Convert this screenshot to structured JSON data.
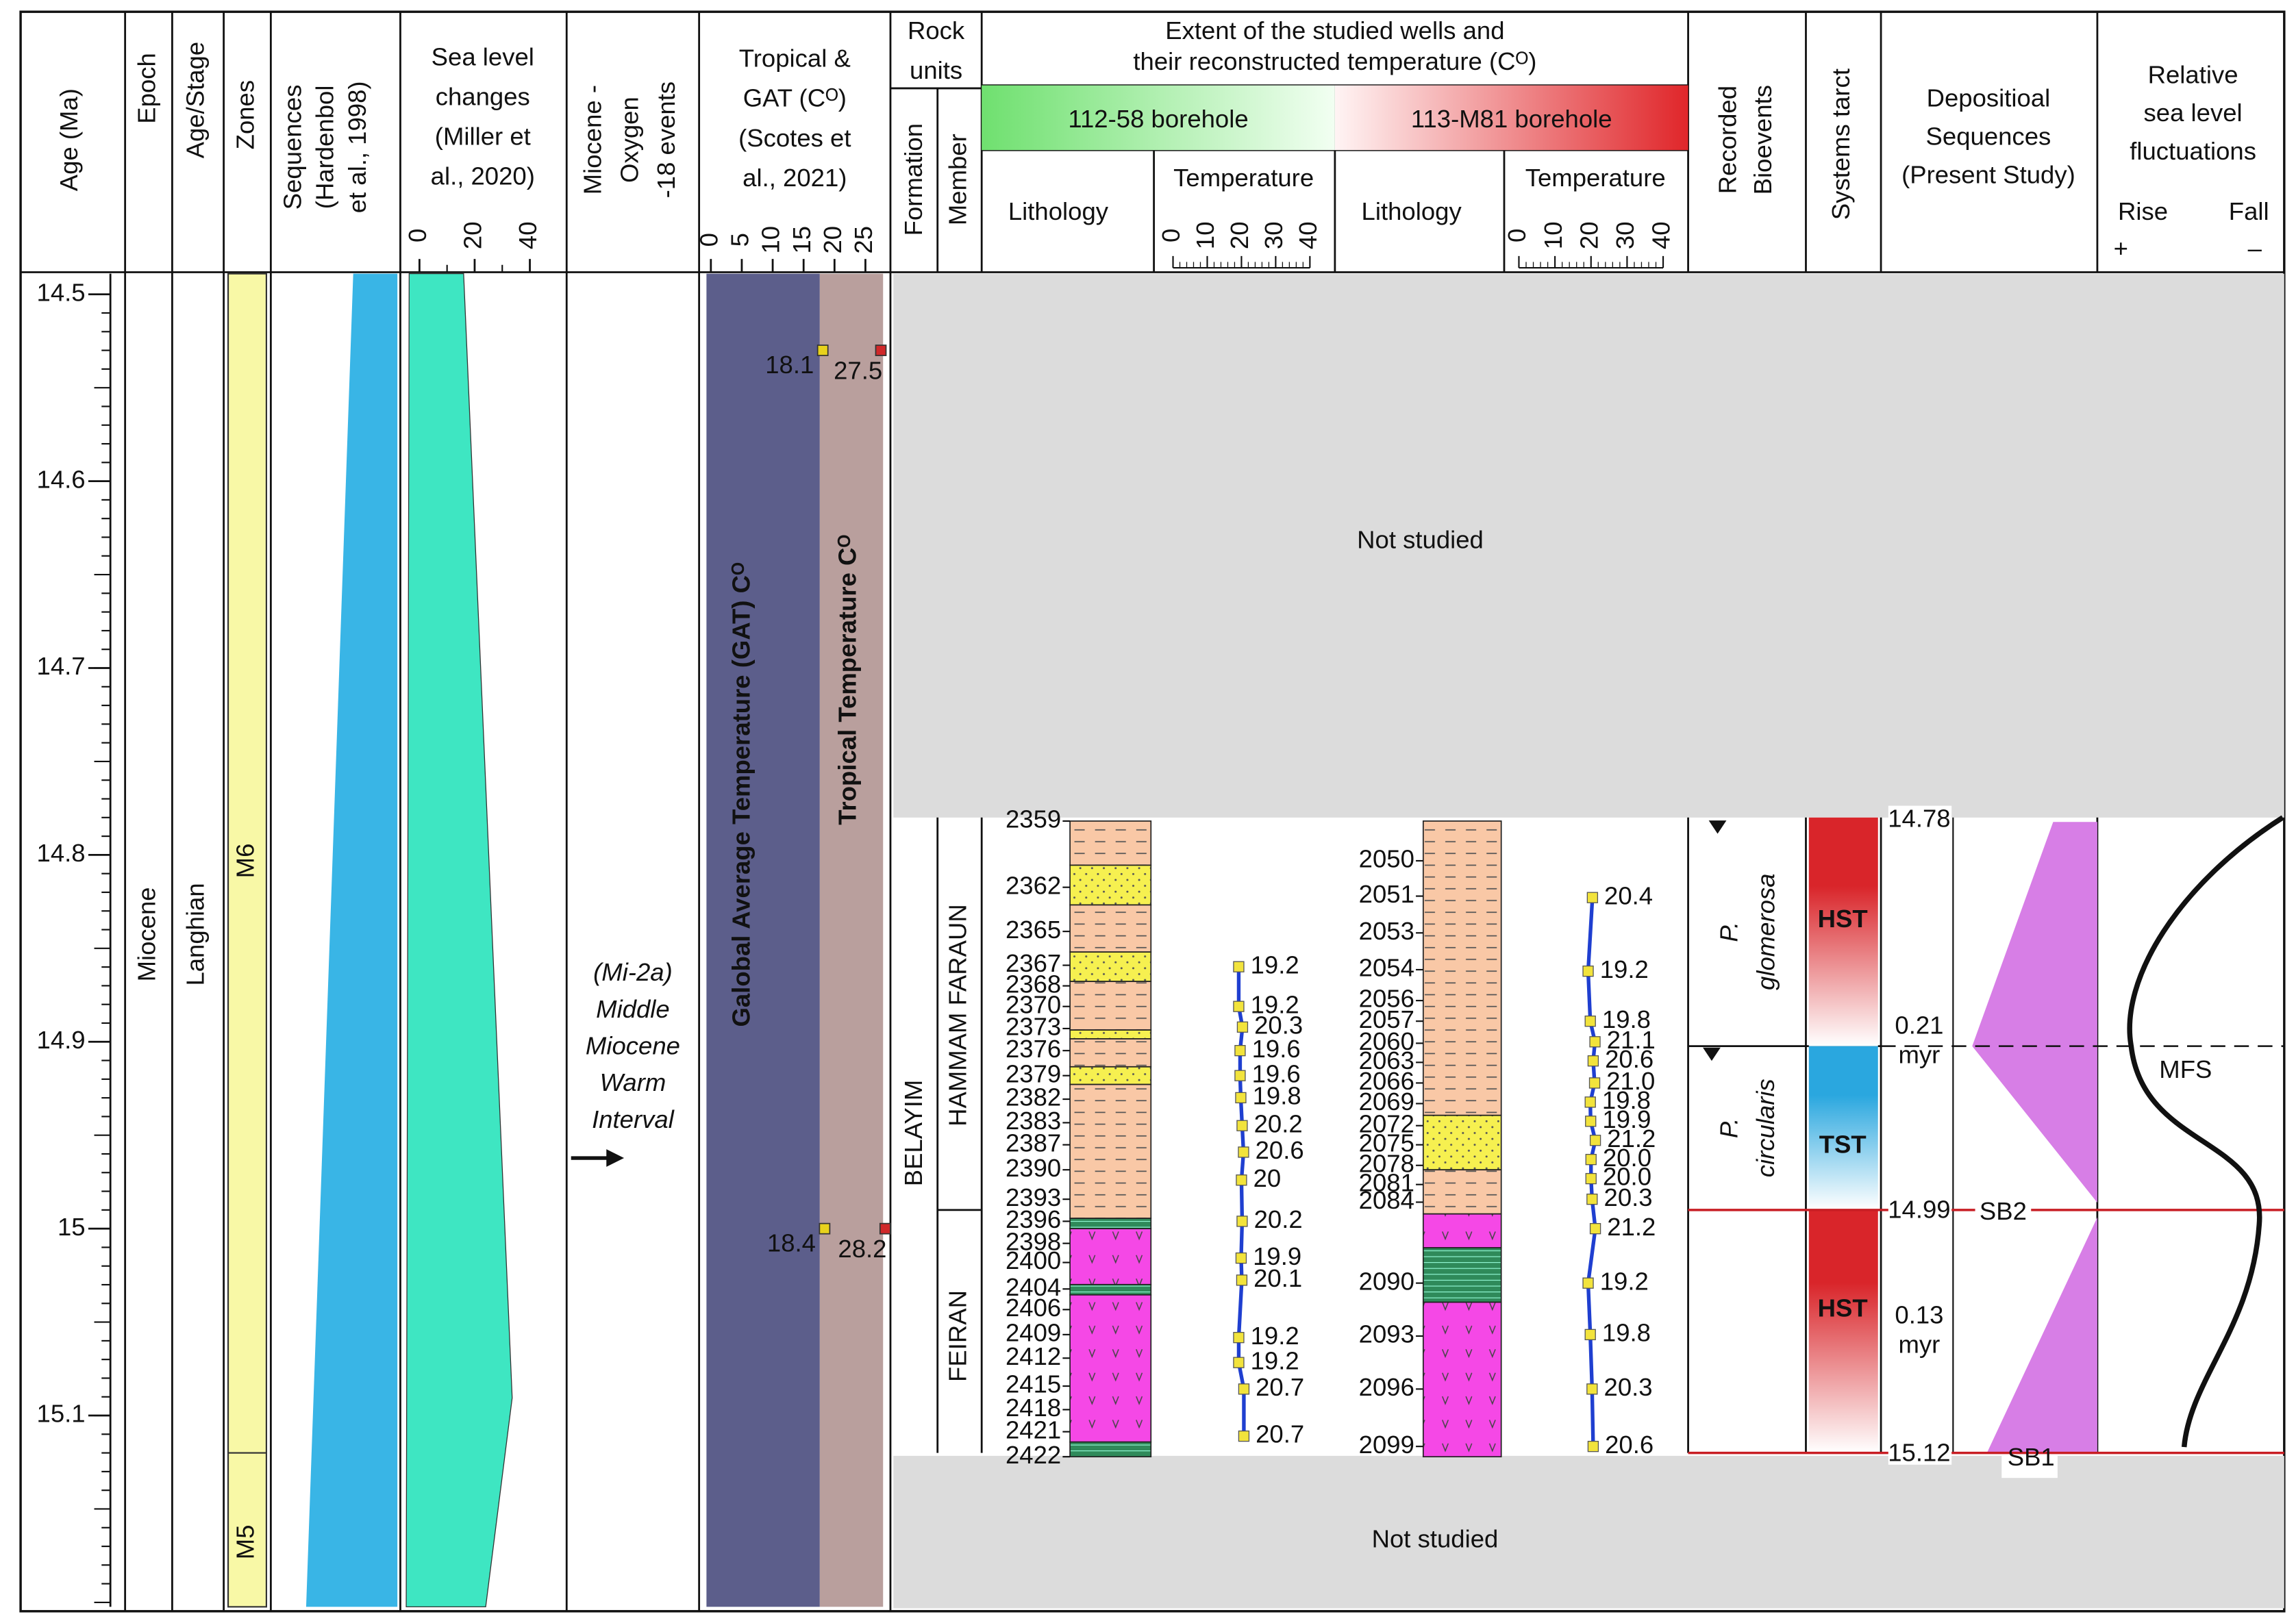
{
  "header": {
    "age": "Age (Ma)",
    "epoch": "Epoch",
    "stage": "Age/Stage",
    "zones": "Zones",
    "sequences": [
      "Sequences",
      "(Hardenbol",
      "et al., 1998)"
    ],
    "sea_level": [
      "Sea level",
      "changes",
      "(Miller et",
      "al., 2020)"
    ],
    "oxygen": [
      "Miocene -",
      "Oxygen",
      "-18 events"
    ],
    "temperature": [
      "Tropical &",
      "GAT (Cᴼ)",
      "(Scotes et",
      "al., 2021)"
    ],
    "rock_units": [
      "Rock",
      "units"
    ],
    "formation": "Formation",
    "member": "Member",
    "wells": [
      "Extent of the studied wells and",
      "their reconstructed temperature (Cᴼ)"
    ],
    "bioevents": [
      "Recorded",
      "Bioevents"
    ],
    "systems_tract": "Systems tarct",
    "depositional": [
      "Depositioal",
      "Sequences",
      "(Present Study)"
    ],
    "relative": [
      "Relative",
      "sea level",
      "fluctuations"
    ],
    "rise": "Rise",
    "fall": "Fall",
    "plus": "+",
    "minus": "–"
  },
  "age_axis": {
    "ylim": [
      14.49,
      15.2
    ],
    "yticks": [
      14.5,
      14.6,
      14.7,
      14.8,
      14.9,
      15,
      15.1
    ],
    "minor_step": 0.01
  },
  "epoch": "Miocene",
  "stage": "Langhian",
  "zones": {
    "names": [
      "M6",
      "M5"
    ],
    "boundary": 15.12
  },
  "sea_level": {
    "xlim": [
      0,
      40
    ],
    "xticks": [
      0,
      20,
      40
    ]
  },
  "oxygen_event": [
    "(Mi-2a)",
    "Middle",
    "Miocene",
    "Warm",
    "Interval"
  ],
  "temperature": {
    "xlim": [
      0,
      25
    ],
    "xticks": [
      0,
      5,
      10,
      15,
      20,
      25
    ],
    "ages": [
      14.53,
      15.0
    ],
    "series": [
      {
        "name": "Galobal Average Temperature (GAT) Cᴼ",
        "color": "#e8d21c",
        "values": [
          18.1,
          18.4
        ]
      },
      {
        "name": "Tropical Temperature Cᴼ",
        "color": "#d0282a",
        "values": [
          27.5,
          28.2
        ]
      }
    ]
  },
  "not_studied": [
    "Not studied",
    "Not studied"
  ],
  "rock_units": {
    "formation": "BELAYIM",
    "members": [
      "HAMMAM FARAUN",
      "FEIRAN"
    ]
  },
  "wells": [
    {
      "name": "112-58 borehole",
      "lithology": "Lithology",
      "temperature": "Temperature",
      "xlim": [
        0,
        40
      ],
      "xticks": [
        0,
        10,
        20,
        30,
        40
      ],
      "depths": [
        2359,
        2362,
        2365,
        2367,
        2368,
        2370,
        2373,
        2376,
        2379,
        2382,
        2383,
        2387,
        2390,
        2393,
        2396,
        2398,
        2400,
        2404,
        2406,
        2409,
        2412,
        2415,
        2418,
        2421,
        2422
      ],
      "values": [
        19.2,
        19.2,
        20.3,
        19.6,
        19.6,
        19.8,
        20.2,
        20.6,
        20,
        20.2,
        19.9,
        20.1,
        19.2,
        19.2,
        20.7,
        20.7
      ]
    },
    {
      "name": "113-M81 borehole",
      "lithology": "Lithology",
      "temperature": "Temperature",
      "xlim": [
        0,
        40
      ],
      "xticks": [
        0,
        10,
        20,
        30,
        40
      ],
      "depths": [
        2050,
        2051,
        2053,
        2054,
        2056,
        2057,
        2060,
        2063,
        2066,
        2069,
        2072,
        2075,
        2078,
        2081,
        2084,
        2090,
        2093,
        2096,
        2099
      ],
      "values": [
        20.4,
        19.2,
        19.8,
        21.1,
        20.6,
        21.0,
        19.8,
        19.9,
        21.2,
        20.0,
        20.0,
        20.3,
        21.2,
        19.2,
        19.8,
        20.3,
        20.6
      ],
      "value_labels": [
        "20.4",
        "19.2",
        "19.8",
        "21.1",
        "20.6",
        "21.0",
        "19.8",
        "19.9",
        "21.2",
        "20.0",
        "20.0",
        "20.3",
        "21.2",
        "19.2",
        "19.8",
        "20.3",
        "20.6"
      ]
    }
  ],
  "bioevents": [
    [
      "P.",
      "glomerosa"
    ],
    [
      "P.",
      "circularis"
    ]
  ],
  "systems_tracts": [
    "HST",
    "TST",
    "HST"
  ],
  "depositional": {
    "ages": [
      14.78,
      14.99,
      15.12
    ],
    "durations": [
      0.21,
      0.13
    ],
    "duration_unit": "myr",
    "surfaces": [
      "SB2",
      "SB1"
    ],
    "mfs": "MFS"
  }
}
